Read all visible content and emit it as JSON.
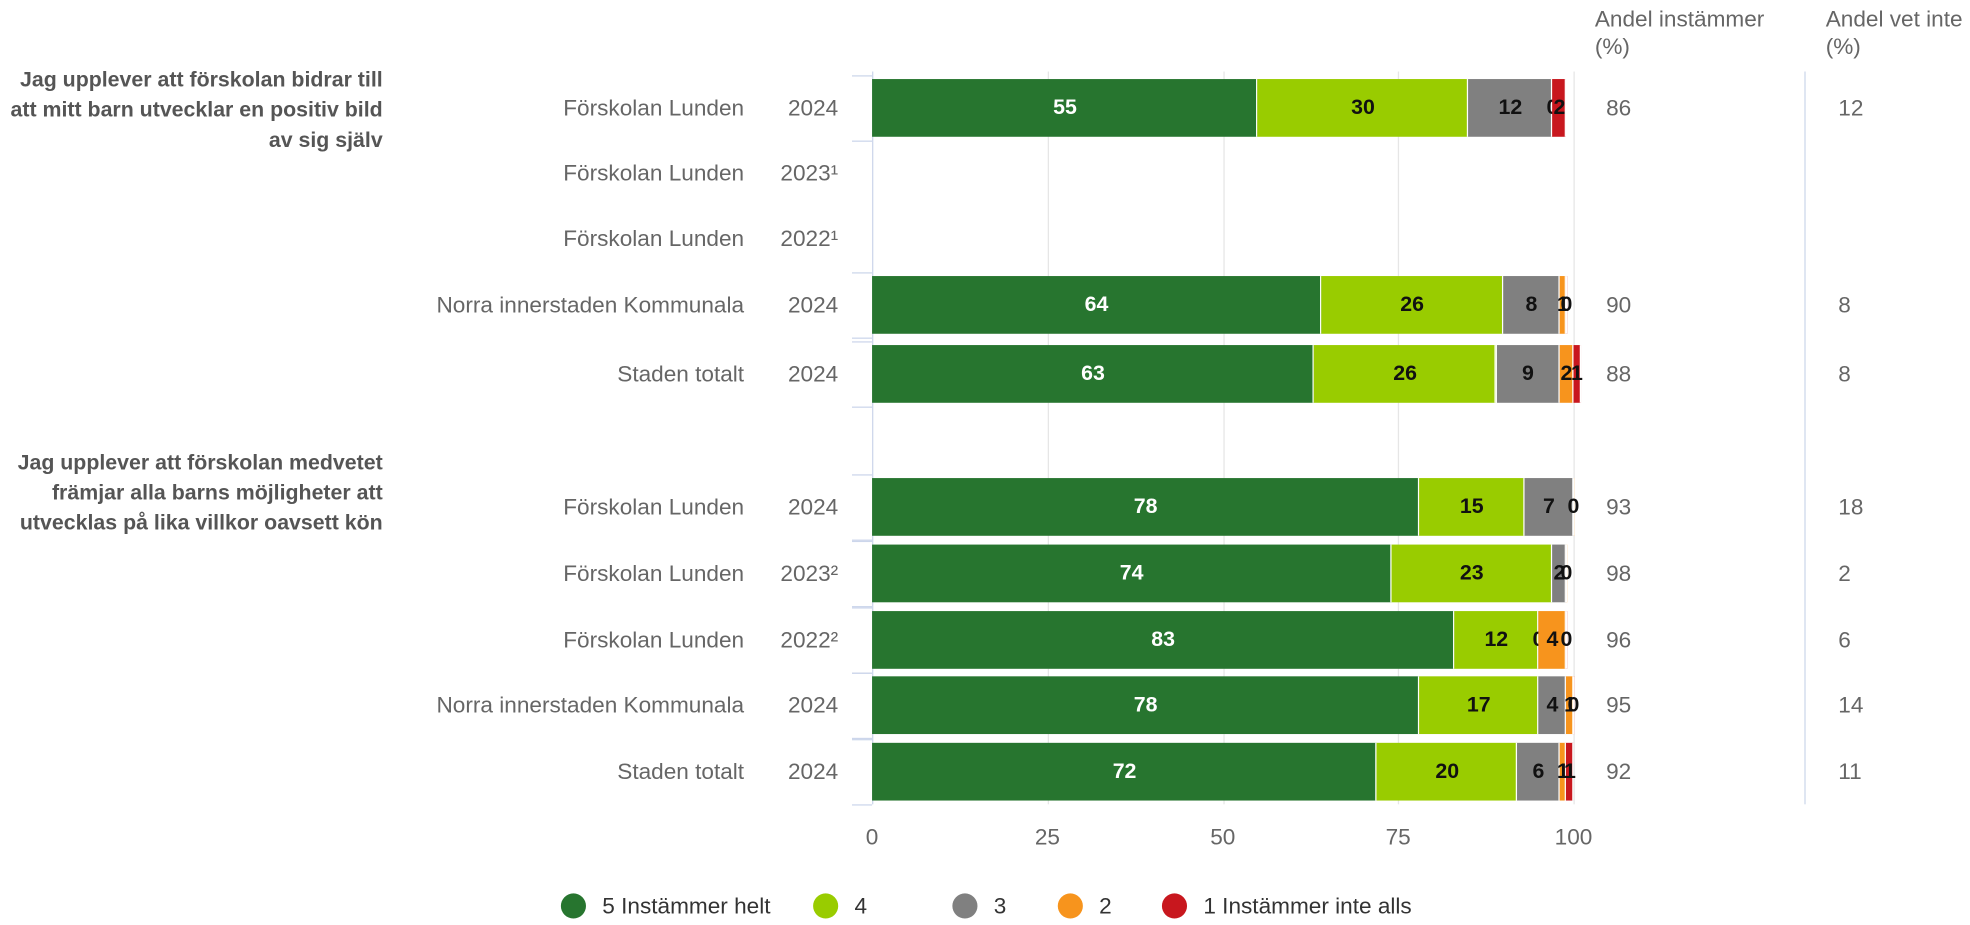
{
  "chart_data": {
    "type": "bar",
    "orientation": "horizontal",
    "stacked": true,
    "series": [
      {
        "name": "5 Instämmer helt",
        "color": "#27752f"
      },
      {
        "name": "4",
        "color": "#99cc00"
      },
      {
        "name": "3",
        "color": "#808080"
      },
      {
        "name": "2",
        "color": "#f7941d"
      },
      {
        "name": "1 Instämmer inte alls",
        "color": "#c8171e"
      }
    ],
    "columns": [
      "Andel instämmer (%)",
      "Andel vet inte (%)"
    ],
    "groups": [
      {
        "title": "Jag upplever att förskolan bidrar till att mitt barn utvecklar en positiv bild av sig själv",
        "rows": [
          {
            "name": "Förskolan Lunden",
            "year": "2024",
            "values": [
              55,
              30,
              12,
              0,
              2
            ],
            "share_agree": 86,
            "share_dont_know": 12
          },
          {
            "name": "Förskolan Lunden",
            "year": "2023¹",
            "values": [
              null,
              null,
              null,
              null,
              null
            ],
            "share_agree": null,
            "share_dont_know": null
          },
          {
            "name": "Förskolan Lunden",
            "year": "2022¹",
            "values": [
              null,
              null,
              null,
              null,
              null
            ],
            "share_agree": null,
            "share_dont_know": null
          },
          {
            "name": "Norra innerstaden Kommunala",
            "year": "2024",
            "values": [
              64,
              26,
              8,
              1,
              0
            ],
            "share_agree": 90,
            "share_dont_know": 8
          },
          {
            "name": "Staden totalt",
            "year": "2024",
            "values": [
              63,
              26,
              9,
              2,
              1
            ],
            "share_agree": 88,
            "share_dont_know": 8
          }
        ]
      },
      {
        "title": "Jag upplever att förskolan medvetet främjar alla barns möjligheter att utvecklas på lika villkor oavsett kön",
        "rows": [
          {
            "name": "Förskolan Lunden",
            "year": "2024",
            "values": [
              78,
              15,
              7,
              0,
              null
            ],
            "share_agree": 93,
            "share_dont_know": 18
          },
          {
            "name": "Förskolan Lunden",
            "year": "2023²",
            "values": [
              74,
              23,
              2,
              0,
              null
            ],
            "share_agree": 98,
            "share_dont_know": 2
          },
          {
            "name": "Förskolan Lunden",
            "year": "2022²",
            "values": [
              83,
              12,
              0,
              4,
              0
            ],
            "share_agree": 96,
            "share_dont_know": 6
          },
          {
            "name": "Norra innerstaden Kommunala",
            "year": "2024",
            "values": [
              78,
              17,
              4,
              1,
              0
            ],
            "share_agree": 95,
            "share_dont_know": 14
          },
          {
            "name": "Staden totalt",
            "year": "2024",
            "values": [
              72,
              20,
              6,
              1,
              1
            ],
            "share_agree": 92,
            "share_dont_know": 11
          }
        ]
      }
    ],
    "xlim": [
      0,
      100
    ],
    "xticks": [
      0,
      25,
      50,
      75,
      100
    ],
    "grid": true,
    "legend": "bottom"
  }
}
